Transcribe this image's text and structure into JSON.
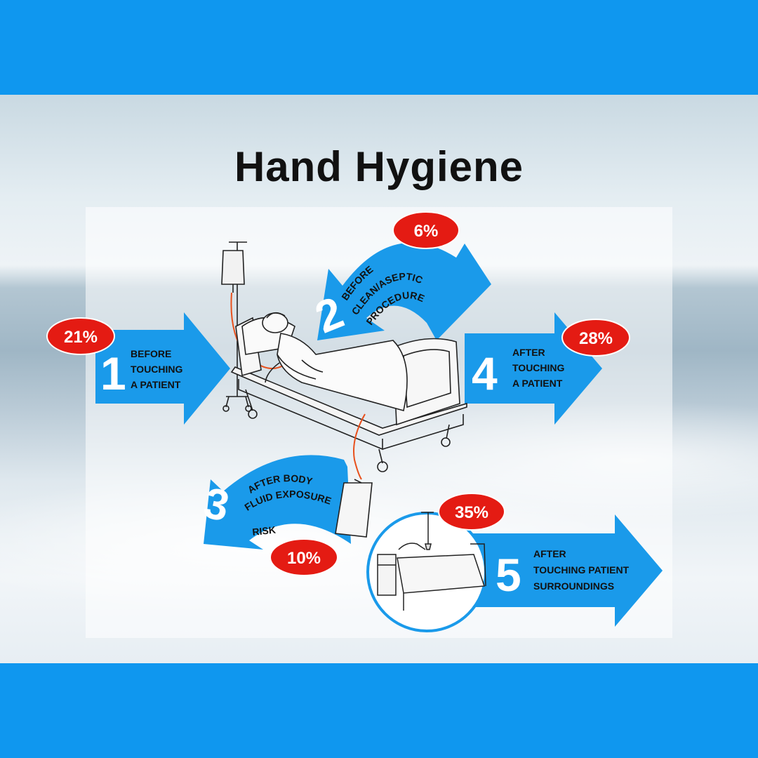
{
  "title": "Hand Hygiene",
  "colors": {
    "arrow": "#1a9aea",
    "badge": "#e41b13",
    "frame": "#0f97ef"
  },
  "moments": [
    {
      "number": "1",
      "lines": [
        "BEFORE",
        "TOUCHING",
        "A PATIENT"
      ],
      "percent": "21%"
    },
    {
      "number": "2",
      "lines": [
        "BEFORE",
        "CLEAN/ASEPTIC",
        "PROCEDURE"
      ],
      "percent": "6%"
    },
    {
      "number": "3",
      "lines": [
        "AFTER BODY",
        "FLUID EXPOSURE",
        "RISK"
      ],
      "percent": "10%"
    },
    {
      "number": "4",
      "lines": [
        "AFTER",
        "TOUCHING",
        "A PATIENT"
      ],
      "percent": "28%"
    },
    {
      "number": "5",
      "lines": [
        "AFTER",
        "TOUCHING PATIENT",
        "SURROUNDINGS"
      ],
      "percent": "35%"
    }
  ]
}
